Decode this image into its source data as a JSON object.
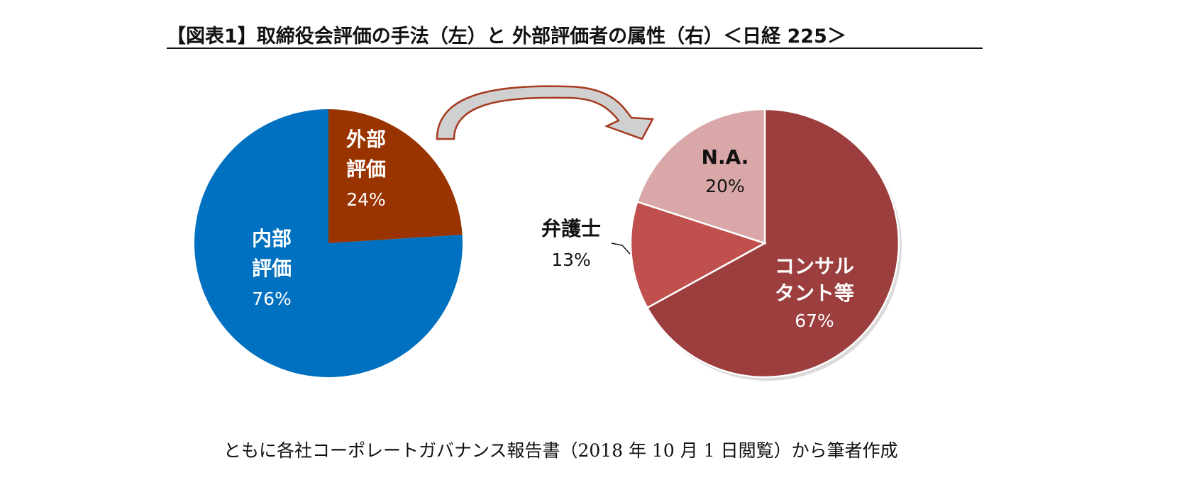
{
  "title": "【図表1】取締役会評価の手法（左）と 外部評価者の属性（右）＜日経 225＞",
  "caption": "ともに各社コーポレートガバナンス報告書（2018 年 10 月 1 日閲覧）から筆者作成",
  "chart_data": [
    {
      "type": "pie",
      "slices": [
        {
          "label_lines": [
            "外部",
            "評価"
          ],
          "value": 24,
          "value_label": "24%",
          "color": "#993300"
        },
        {
          "label_lines": [
            "内部",
            "評価"
          ],
          "value": 76,
          "value_label": "76%",
          "color": "#0070C0"
        }
      ]
    },
    {
      "type": "pie",
      "slices": [
        {
          "label_lines": [
            "コンサル",
            "タント等"
          ],
          "value": 67,
          "value_label": "67%",
          "color": "#9C3E3E"
        },
        {
          "label_lines": [
            "弁護士"
          ],
          "value": 13,
          "value_label": "13%",
          "color": "#C0504D"
        },
        {
          "label_lines": [
            "N.A."
          ],
          "value": 20,
          "value_label": "20%",
          "color": "#D9A7A7"
        }
      ]
    }
  ]
}
